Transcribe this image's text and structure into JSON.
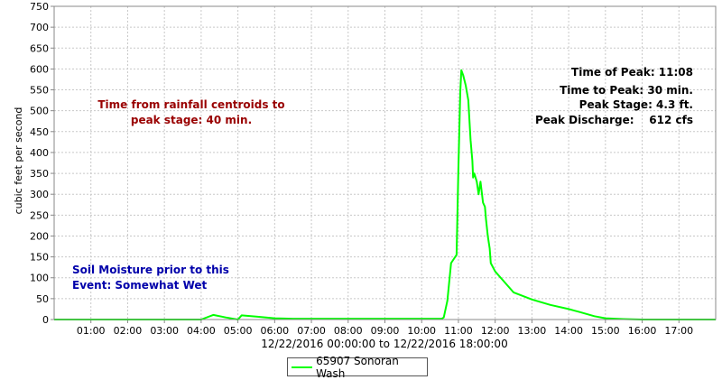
{
  "chart_data": {
    "type": "line",
    "title": "",
    "xlabel": "12/22/2016 00:00:00 to 12/22/2016 18:00:00",
    "ylabel": "cubic feet per second",
    "xlim_hours": [
      0,
      18
    ],
    "ylim": [
      0,
      750
    ],
    "yticks": [
      0,
      50,
      100,
      150,
      200,
      250,
      300,
      350,
      400,
      450,
      500,
      550,
      600,
      650,
      700,
      750
    ],
    "xtick_labels": [
      "01:00",
      "02:00",
      "03:00",
      "04:00",
      "05:00",
      "06:00",
      "07:00",
      "08:00",
      "09:00",
      "10:00",
      "11:00",
      "12:00",
      "13:00",
      "14:00",
      "15:00",
      "16:00",
      "17:00"
    ],
    "grid": true,
    "legend_position": "bottom-center",
    "series": [
      {
        "name": "65907 Sonoran Wash",
        "color": "#00ff00",
        "x_hours": [
          0,
          4.0,
          4.33,
          4.67,
          5.0,
          5.1,
          5.5,
          6.0,
          6.5,
          10.55,
          10.6,
          10.7,
          10.8,
          10.95,
          11.0,
          11.05,
          11.08,
          11.13,
          11.2,
          11.27,
          11.33,
          11.38,
          11.4,
          11.43,
          11.5,
          11.55,
          11.6,
          11.67,
          11.72,
          11.75,
          11.8,
          11.85,
          11.88,
          12.0,
          12.2,
          12.5,
          13.0,
          13.5,
          14.0,
          14.3,
          14.7,
          15.0,
          15.5,
          16.0,
          18.0
        ],
        "values": [
          0,
          0,
          11,
          5,
          0,
          10,
          7,
          3,
          2,
          2,
          5,
          45,
          135,
          155,
          360,
          545,
          597,
          585,
          560,
          525,
          430,
          380,
          340,
          350,
          330,
          300,
          330,
          280,
          270,
          240,
          200,
          170,
          135,
          115,
          95,
          65,
          48,
          35,
          25,
          18,
          8,
          3,
          1,
          0,
          0
        ]
      }
    ]
  },
  "annotations": {
    "rainfall_line1": "Time from rainfall centroids to",
    "rainfall_line2": "peak stage: 40 min.",
    "peak_time": "Time of Peak: 11:08",
    "time_to_peak": "Time to Peak: 30 min.",
    "peak_stage": "Peak Stage: 4.3 ft.",
    "peak_discharge": "Peak Discharge:    612 cfs",
    "soil_line1": "Soil Moisture prior to this",
    "soil_line2": "Event: Somewhat Wet"
  },
  "colors": {
    "rainfall_note": "#990000",
    "soil_note": "#0000aa",
    "peak_note": "#000000",
    "grid": "#c8c8c8"
  }
}
